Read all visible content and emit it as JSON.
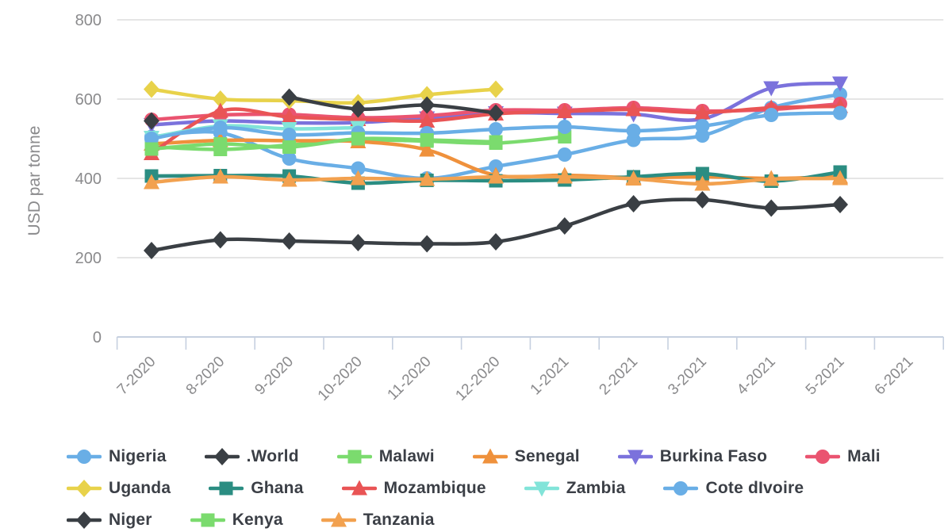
{
  "chart": {
    "y_axis_title": "USD par tonne"
  },
  "chart_data": {
    "type": "line",
    "title": "",
    "xlabel": "",
    "ylabel": "USD par tonne",
    "ylim": [
      0,
      800
    ],
    "y_ticks": [
      800,
      600,
      400,
      200,
      0
    ],
    "grid": true,
    "smooth": true,
    "legend_position": "bottom",
    "categories": [
      "7-2020",
      "8-2020",
      "9-2020",
      "10-2020",
      "11-2020",
      "12-2020",
      "1-2021",
      "2-2021",
      "3-2021",
      "4-2021",
      "5-2021",
      "6-2021"
    ],
    "series": [
      {
        "name": "Nigeria",
        "color": "#69aee6",
        "marker": "circle",
        "values": [
          505,
          515,
          450,
          425,
          400,
          430,
          460,
          497,
          508,
          578,
          612,
          null
        ]
      },
      {
        "name": ".World",
        "color": "#3a3f44",
        "marker": "diamond",
        "values": [
          218,
          245,
          242,
          238,
          235,
          240,
          280,
          336,
          346,
          325,
          334,
          null
        ]
      },
      {
        "name": "Malawi",
        "color": "#7bdb6e",
        "marker": "square",
        "values": [
          480,
          473,
          484,
          497,
          494,
          489,
          505,
          null,
          null,
          null,
          null,
          null
        ]
      },
      {
        "name": "Senegal",
        "color": "#ef913c",
        "marker": "triangle",
        "values": [
          487,
          496,
          495,
          493,
          472,
          408,
          408,
          402,
          404,
          400,
          404,
          null
        ]
      },
      {
        "name": "Burkina Faso",
        "color": "#7b72dc",
        "marker": "triangle-down",
        "values": [
          535,
          545,
          540,
          541,
          552,
          565,
          564,
          562,
          550,
          628,
          640,
          null
        ]
      },
      {
        "name": "Mali",
        "color": "#ea5470",
        "marker": "circle",
        "values": [
          548,
          560,
          561,
          553,
          558,
          572,
          572,
          578,
          570,
          574,
          588,
          null
        ]
      },
      {
        "name": "Uganda",
        "color": "#e8d24a",
        "marker": "diamond",
        "values": [
          625,
          600,
          596,
          591,
          611,
          625,
          null,
          null,
          null,
          null,
          null,
          null
        ]
      },
      {
        "name": "Ghana",
        "color": "#2b8d82",
        "marker": "square",
        "values": [
          406,
          407,
          406,
          388,
          395,
          394,
          396,
          404,
          412,
          393,
          416,
          null
        ]
      },
      {
        "name": "Mozambique",
        "color": "#e95455",
        "marker": "triangle",
        "values": [
          463,
          570,
          555,
          549,
          545,
          563,
          569,
          574,
          566,
          578,
          582,
          null
        ]
      },
      {
        "name": "Zambia",
        "color": "#82e4d9",
        "marker": "triangle-down",
        "values": [
          503,
          532,
          525,
          528,
          null,
          null,
          null,
          null,
          null,
          null,
          null,
          null
        ]
      },
      {
        "name": "Cote dIvoire",
        "color": "#69aee6",
        "marker": "circle",
        "values": [
          500,
          528,
          510,
          515,
          514,
          524,
          530,
          520,
          532,
          560,
          565,
          null
        ]
      },
      {
        "name": "Niger",
        "color": "#3a3f44",
        "marker": "diamond",
        "values": [
          545,
          null,
          605,
          575,
          585,
          565,
          null,
          null,
          null,
          null,
          null,
          null
        ]
      },
      {
        "name": "Kenya",
        "color": "#7bdb6e",
        "marker": "square",
        "values": [
          474,
          487,
          479,
          500,
          497,
          492,
          null,
          null,
          null,
          null,
          null,
          null
        ]
      },
      {
        "name": "Tanzania",
        "color": "#f2a14f",
        "marker": "triangle",
        "values": [
          390,
          404,
          396,
          400,
          398,
          404,
          404,
          399,
          386,
          398,
          400,
          null
        ]
      }
    ]
  },
  "legend": {
    "rows": [
      [
        "Nigeria",
        ".World",
        "Malawi",
        "Senegal",
        "Burkina Faso",
        "Mali"
      ],
      [
        "Uganda",
        "Ghana",
        "Mozambique",
        "Zambia",
        "Cote dIvoire"
      ],
      [
        "Niger",
        "Kenya",
        "Tanzania"
      ]
    ]
  },
  "style": {
    "grid_color": "#e5e5e5",
    "axis_color": "#c6d0e0",
    "tick_text_color": "#8a8a8c",
    "axis_title_color": "#8a8a8c"
  }
}
